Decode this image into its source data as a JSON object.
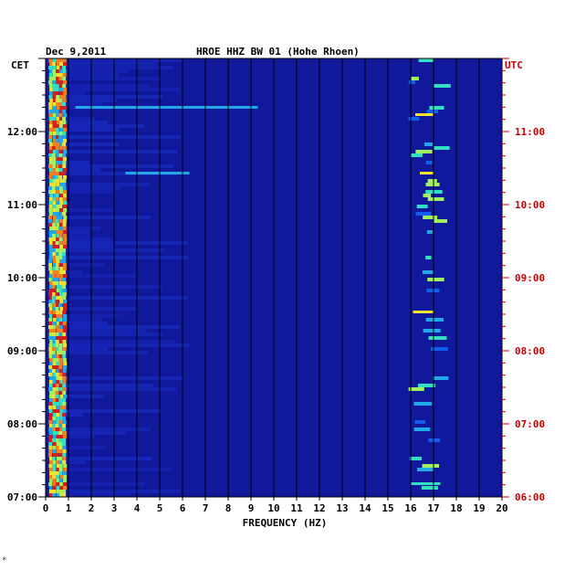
{
  "chart_data": {
    "type": "heatmap",
    "header": {
      "date": "Dec 9,2011",
      "station": "HROE HHZ BW 01 (Hohe Rhoen)"
    },
    "left_axis_title": "CET",
    "right_axis_title": "UTC",
    "xlabel": "FREQUENCY (HZ)",
    "x_ticks": [
      "0",
      "1",
      "2",
      "3",
      "4",
      "5",
      "6",
      "7",
      "8",
      "9",
      "10",
      "11",
      "12",
      "13",
      "14",
      "15",
      "16",
      "17",
      "18",
      "19",
      "20"
    ],
    "xlim": [
      0,
      20
    ],
    "left_ticks": [
      "12:00",
      "11:00",
      "10:00",
      "09:00",
      "08:00",
      "07:00"
    ],
    "right_ticks": [
      "11:00",
      "10:00",
      "09:00",
      "08:00",
      "07:00",
      "06:00"
    ],
    "time_range_cet_hours": [
      7.0,
      13.0
    ],
    "tick_hours_cet": [
      12,
      11,
      10,
      9,
      8,
      7
    ],
    "footer_mark": "*",
    "colors": {
      "background": "#10189c",
      "low": "#1a2fc8",
      "mid": "#20a8e8",
      "high": "#e8e040",
      "peak": "#d02020",
      "cet_color": "#000000",
      "utc_color": "#cc0000"
    },
    "energy_bands": [
      {
        "from_hz": 0.1,
        "to_hz": 0.9,
        "level": "peak"
      },
      {
        "from_hz": 15.8,
        "to_hz": 17.2,
        "level": "high"
      }
    ]
  }
}
